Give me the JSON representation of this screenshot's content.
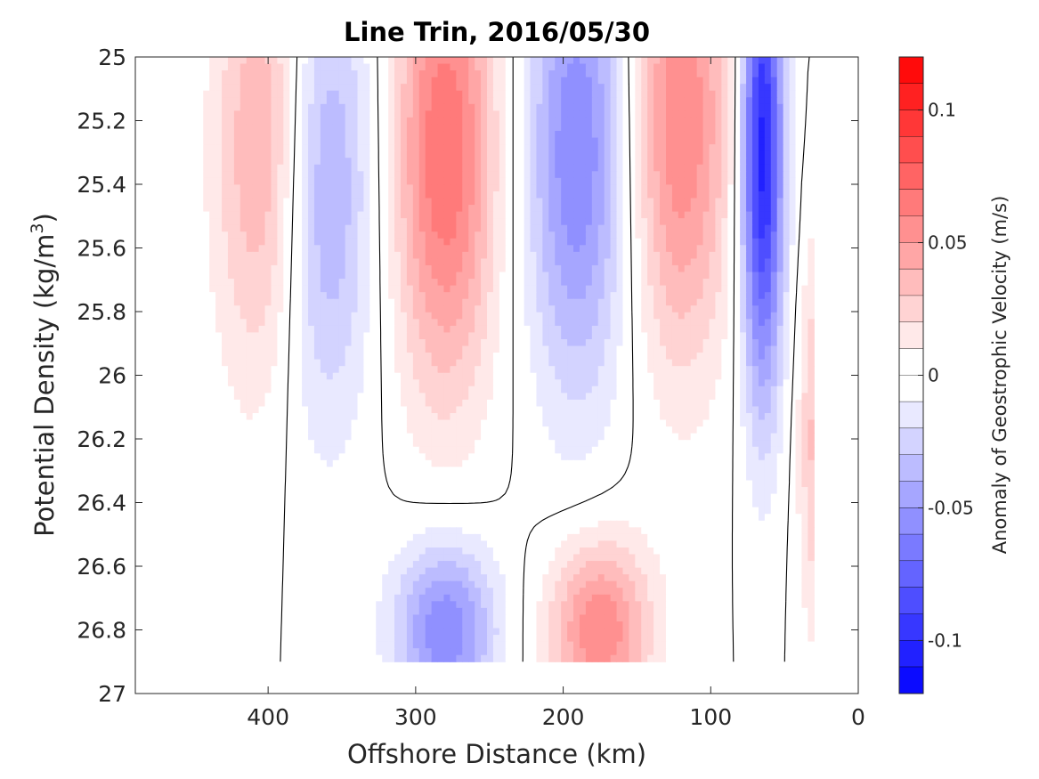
{
  "chart_data": {
    "type": "heatmap",
    "subtype": "filled-contour",
    "title": "Line Trin, 2016/05/30",
    "xlabel": "Offshore Distance (km)",
    "ylabel_main": "Potential Density (kg/m",
    "ylabel_sup": "3",
    "ylabel_close": ")",
    "colorbar_label": "Anomaly of Geostrophic Velocity (m/s)",
    "xlim": [
      490,
      0
    ],
    "x_reversed": true,
    "ylim": [
      25,
      27
    ],
    "y_reversed": true,
    "x_ticks": [
      400,
      300,
      200,
      100,
      0
    ],
    "y_ticks": [
      25,
      25.2,
      25.4,
      25.6,
      25.8,
      26,
      26.2,
      26.4,
      26.6,
      26.8,
      27
    ],
    "x_tick_labels": [
      "400",
      "300",
      "200",
      "100",
      "0"
    ],
    "y_tick_labels": [
      "25",
      "25.2",
      "25.4",
      "25.6",
      "25.8",
      "26",
      "26.2",
      "26.4",
      "26.6",
      "26.8",
      "27"
    ],
    "colorbar": {
      "range": [
        -0.12,
        0.12
      ],
      "levels": 24,
      "tick_values": [
        0.1,
        0.05,
        0,
        -0.05,
        -0.1
      ],
      "tick_labels": [
        "0.1",
        "0.05",
        "0",
        "-0.05",
        "-0.1"
      ],
      "colormap": "blue-white-red",
      "negative_color": "#0000ff",
      "positive_color": "#ff0000",
      "zero_color": "#ffffff"
    },
    "data_region": {
      "x_range": [
        490,
        30
      ],
      "density_range": [
        25,
        26.9
      ]
    },
    "contour_lines": {
      "level": 0,
      "color": "#000000"
    },
    "features": [
      {
        "sign": "negative",
        "x": 65,
        "y": 25.3,
        "value": -0.11
      },
      {
        "sign": "negative",
        "x": 190,
        "y": 25.3,
        "value": -0.06
      },
      {
        "sign": "negative",
        "x": 365,
        "y": 25.4,
        "value": -0.05
      },
      {
        "sign": "positive",
        "x": 280,
        "y": 25.3,
        "value": 0.07
      },
      {
        "sign": "positive",
        "x": 400,
        "y": 25.3,
        "value": 0.05
      },
      {
        "sign": "positive",
        "x": 120,
        "y": 25.2,
        "value": 0.06
      },
      {
        "sign": "positive",
        "x": 175,
        "y": 26.8,
        "value": 0.06
      },
      {
        "sign": "negative",
        "x": 280,
        "y": 26.8,
        "value": -0.06
      }
    ],
    "grid": false
  }
}
